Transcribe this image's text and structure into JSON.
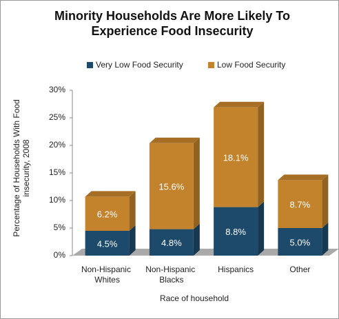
{
  "chart_data": {
    "type": "stacked_bar_3d",
    "title": "Minority Households Are More Likely To Experience Food Insecurity",
    "ylabel": "Percentage of Households With Food insecurity, 2008",
    "xlabel": "Race of household",
    "categories": [
      "Non-Hispanic Whites",
      "Non-Hispanic Blacks",
      "Hispanics",
      "Other"
    ],
    "series": [
      {
        "name": "Very Low Food Security",
        "color": "#1d4a6a",
        "values": [
          4.5,
          4.8,
          8.8,
          5.0
        ],
        "value_labels": [
          "4.5%",
          "4.8%",
          "8.8%",
          "5.0%"
        ]
      },
      {
        "name": "Low Food Security",
        "color": "#c3822c",
        "values": [
          6.2,
          15.6,
          18.1,
          8.7
        ],
        "value_labels": [
          "6.2%",
          "15.6%",
          "18.1%",
          "8.7%"
        ]
      }
    ],
    "ylim": [
      0,
      30
    ],
    "yticks": [
      {
        "value": 0,
        "label": "0%"
      },
      {
        "value": 5,
        "label": "5%"
      },
      {
        "value": 10,
        "label": "10%"
      },
      {
        "value": 15,
        "label": "15%"
      },
      {
        "value": 20,
        "label": "20%"
      },
      {
        "value": 25,
        "label": "25%"
      },
      {
        "value": 30,
        "label": "30%"
      }
    ],
    "legend": "top"
  }
}
